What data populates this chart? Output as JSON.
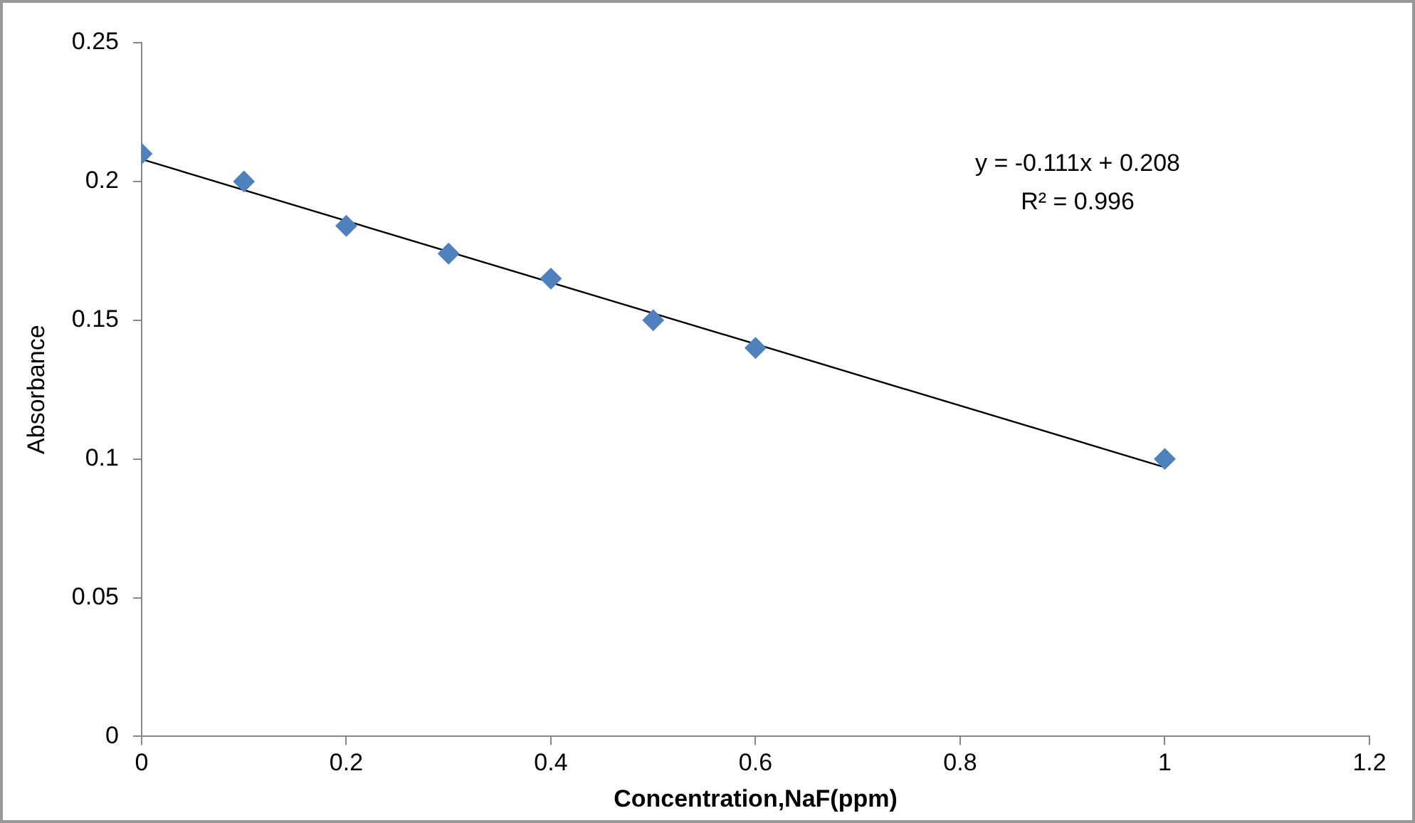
{
  "chart_data": {
    "type": "scatter",
    "xlabel": "Concentration,NaF(ppm)",
    "ylabel": "Absorbance",
    "x": [
      0,
      0.1,
      0.2,
      0.3,
      0.4,
      0.5,
      0.6,
      1
    ],
    "series": [
      {
        "color": "#4f81bd",
        "marker": "diamond",
        "values": [
          0.21,
          0.2,
          0.184,
          0.174,
          0.165,
          0.15,
          0.14,
          0.1
        ]
      },
      {
        "type": "line",
        "color": "#000000",
        "x": [
          0,
          1
        ],
        "values": [
          0.208,
          0.097
        ],
        "marker": "none",
        "line_style": "solid"
      }
    ],
    "xlim": [
      0,
      1.2
    ],
    "xticks": [
      0,
      0.2,
      0.4,
      0.6,
      0.8,
      1,
      1.2
    ],
    "ylim": [
      0,
      0.25
    ],
    "yticks": [
      0,
      0.05,
      0.1,
      0.15,
      0.2,
      0.25
    ],
    "grid": false,
    "legend": false,
    "annotations": [
      "y = -0.111x + 0.208",
      "R² = 0.996"
    ]
  }
}
